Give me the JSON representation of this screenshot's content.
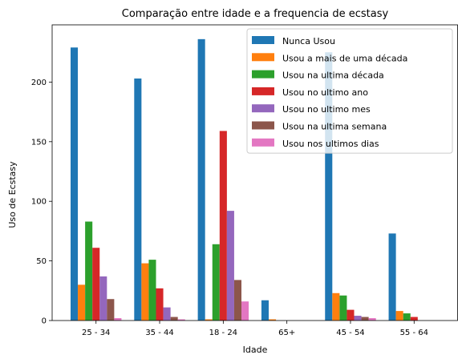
{
  "chart_data": {
    "type": "bar",
    "title": "Comparação entre idade e a frequencia de ecstasy",
    "xlabel": "Idade",
    "ylabel": "Uso de Ecstasy",
    "ylim": [
      0,
      248
    ],
    "yticks": [
      0,
      50,
      100,
      150,
      200
    ],
    "legend_position": "top-right",
    "categories": [
      "25 - 34",
      "35 - 44",
      "18 - 24",
      "65+",
      "45 - 54",
      "55 - 64"
    ],
    "series": [
      {
        "name": "Nunca Usou",
        "color": "#1f77b4",
        "values": [
          229,
          203,
          236,
          17,
          225,
          73
        ]
      },
      {
        "name": "Usou a mais de uma década",
        "color": "#ff7f0e",
        "values": [
          30,
          48,
          1,
          1,
          23,
          8
        ]
      },
      {
        "name": "Usou na ultima década",
        "color": "#2ca02c",
        "values": [
          83,
          51,
          64,
          0,
          21,
          6
        ]
      },
      {
        "name": "Usou no ultimo ano",
        "color": "#d62728",
        "values": [
          61,
          27,
          159,
          0,
          9,
          3
        ]
      },
      {
        "name": "Usou no ultimo mes",
        "color": "#9467bd",
        "values": [
          37,
          11,
          92,
          0,
          4,
          0
        ]
      },
      {
        "name": "Usou na ultima semana",
        "color": "#8c564b",
        "values": [
          18,
          3,
          34,
          0,
          3,
          0
        ]
      },
      {
        "name": "Usou nos ultimos dias",
        "color": "#e377c2",
        "values": [
          2,
          1,
          16,
          0,
          2,
          0
        ]
      }
    ]
  }
}
